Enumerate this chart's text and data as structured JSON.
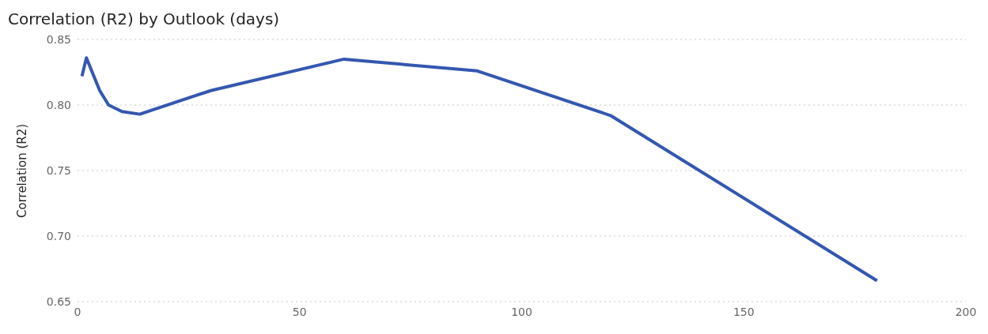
{
  "chart_data": {
    "type": "line",
    "title": "Correlation (R2) by Outlook (days)",
    "ylabel": "Correlation (R2)",
    "x": [
      1,
      2,
      5,
      7,
      10,
      14,
      30,
      60,
      90,
      120,
      180
    ],
    "series": [
      {
        "color": "#3457b0",
        "values": [
          0.822,
          0.836,
          0.811,
          0.8,
          0.795,
          0.793,
          0.811,
          0.835,
          0.826,
          0.792,
          0.666
        ]
      }
    ],
    "xlim": [
      0,
      200
    ],
    "xticks": [
      0,
      50,
      100,
      150,
      200
    ],
    "ylim": [
      0.65,
      0.85
    ],
    "yticks": [
      0.65,
      {
        "value": 0.7,
        "label": "0.70"
      },
      0.75,
      {
        "value": 0.8,
        "label": "0.80"
      },
      0.85
    ],
    "grid": "y",
    "marker": "none",
    "line_style": "solid",
    "legend": false
  }
}
